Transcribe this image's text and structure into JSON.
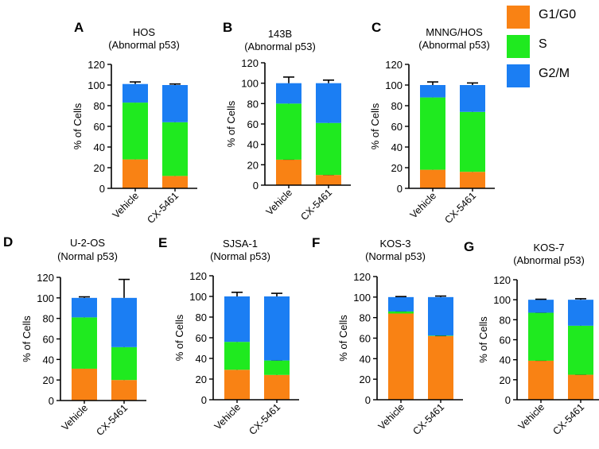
{
  "legend": [
    {
      "label": "G1/G0",
      "color": "#f98214"
    },
    {
      "label": "S",
      "color": "#1fea1f"
    },
    {
      "label": "G2/M",
      "color": "#1b7ef3"
    }
  ],
  "chart_data": [
    {
      "panel": "A",
      "type": "bar",
      "stacked": true,
      "title": "HOS",
      "subtitle": "(Abnormal p53)",
      "ylabel": "% of Cells",
      "ylim": [
        0,
        120
      ],
      "yticks": [
        0,
        20,
        40,
        60,
        80,
        100,
        120
      ],
      "categories": [
        "Vehicle",
        "CX-5461"
      ],
      "series": [
        {
          "name": "G1/G0",
          "values": [
            28,
            12
          ],
          "errors": [
            5,
            2
          ]
        },
        {
          "name": "S",
          "values": [
            55,
            52
          ],
          "errors": [
            2,
            1
          ]
        },
        {
          "name": "G2/M",
          "values": [
            18,
            36
          ],
          "errors": [
            2,
            1
          ]
        }
      ]
    },
    {
      "panel": "B",
      "type": "bar",
      "stacked": true,
      "title": "143B",
      "subtitle": "(Abnormal p53)",
      "ylabel": "% of Cells",
      "ylim": [
        0,
        120
      ],
      "yticks": [
        0,
        20,
        40,
        60,
        80,
        100,
        120
      ],
      "categories": [
        "Vehicle",
        "CX-5461"
      ],
      "series": [
        {
          "name": "G1/G0",
          "values": [
            25,
            10
          ],
          "errors": [
            0.5,
            0.5
          ]
        },
        {
          "name": "S",
          "values": [
            55,
            51
          ],
          "errors": [
            6,
            2
          ]
        },
        {
          "name": "G2/M",
          "values": [
            20,
            39
          ],
          "errors": [
            6,
            3
          ]
        }
      ]
    },
    {
      "panel": "C",
      "type": "bar",
      "stacked": true,
      "title": "MNNG/HOS",
      "subtitle": "(Abnormal p53)",
      "ylabel": "% of Cells",
      "ylim": [
        0,
        120
      ],
      "yticks": [
        0,
        20,
        40,
        60,
        80,
        100,
        120
      ],
      "categories": [
        "Vehicle",
        "CX-5461"
      ],
      "series": [
        {
          "name": "G1/G0",
          "values": [
            18,
            16
          ],
          "errors": [
            1,
            3
          ]
        },
        {
          "name": "S",
          "values": [
            70,
            58
          ],
          "errors": [
            5,
            2
          ]
        },
        {
          "name": "G2/M",
          "values": [
            12,
            26
          ],
          "errors": [
            3,
            2
          ]
        }
      ]
    },
    {
      "panel": "D",
      "type": "bar",
      "stacked": true,
      "title": "U-2-OS",
      "subtitle": "(Normal p53)",
      "ylabel": "% of Cells",
      "ylim": [
        0,
        120
      ],
      "yticks": [
        0,
        20,
        40,
        60,
        80,
        100,
        120
      ],
      "categories": [
        "Vehicle",
        "CX-5461"
      ],
      "series": [
        {
          "name": "G1/G0",
          "values": [
            31,
            20
          ],
          "errors": [
            2,
            1
          ]
        },
        {
          "name": "S",
          "values": [
            50,
            32
          ],
          "errors": [
            4,
            16
          ]
        },
        {
          "name": "G2/M",
          "values": [
            19,
            48
          ],
          "errors": [
            1,
            18
          ]
        }
      ]
    },
    {
      "panel": "E",
      "type": "bar",
      "stacked": true,
      "title": "SJSA-1",
      "subtitle": "(Normal p53)",
      "ylabel": "% of Cells",
      "ylim": [
        0,
        120
      ],
      "yticks": [
        0,
        20,
        40,
        60,
        80,
        100,
        120
      ],
      "categories": [
        "Vehicle",
        "CX-5461"
      ],
      "series": [
        {
          "name": "G1/G0",
          "values": [
            29,
            24
          ],
          "errors": [
            2,
            3
          ]
        },
        {
          "name": "S",
          "values": [
            27,
            14
          ],
          "errors": [
            1,
            0.5
          ]
        },
        {
          "name": "G2/M",
          "values": [
            44,
            62
          ],
          "errors": [
            4,
            3
          ]
        }
      ]
    },
    {
      "panel": "F",
      "type": "bar",
      "stacked": true,
      "title": "KOS-3",
      "subtitle": "(Normal p53)",
      "ylabel": "% of Cells",
      "ylim": [
        0,
        120
      ],
      "yticks": [
        0,
        20,
        40,
        60,
        80,
        100,
        120
      ],
      "categories": [
        "Vehicle",
        "CX-5461"
      ],
      "series": [
        {
          "name": "G1/G0",
          "values": [
            84,
            62
          ],
          "errors": [
            2,
            0.5
          ]
        },
        {
          "name": "S",
          "values": [
            2,
            0.5
          ],
          "errors": [
            0.5,
            0.5
          ]
        },
        {
          "name": "G2/M",
          "values": [
            14,
            37.5
          ],
          "errors": [
            0.5,
            1
          ]
        }
      ]
    },
    {
      "panel": "G",
      "type": "bar",
      "stacked": true,
      "title": "KOS-7",
      "subtitle": "(Abnormal p53)",
      "ylabel": "% of Cells",
      "ylim": [
        0,
        120
      ],
      "yticks": [
        0,
        20,
        40,
        60,
        80,
        100,
        120
      ],
      "categories": [
        "Vehicle",
        "CX-5461"
      ],
      "series": [
        {
          "name": "G1/G0",
          "values": [
            39,
            25
          ],
          "errors": [
            0.5,
            0.5
          ]
        },
        {
          "name": "S",
          "values": [
            48,
            49
          ],
          "errors": [
            0.5,
            1
          ]
        },
        {
          "name": "G2/M",
          "values": [
            13,
            26
          ],
          "errors": [
            0.5,
            1
          ]
        }
      ]
    }
  ]
}
